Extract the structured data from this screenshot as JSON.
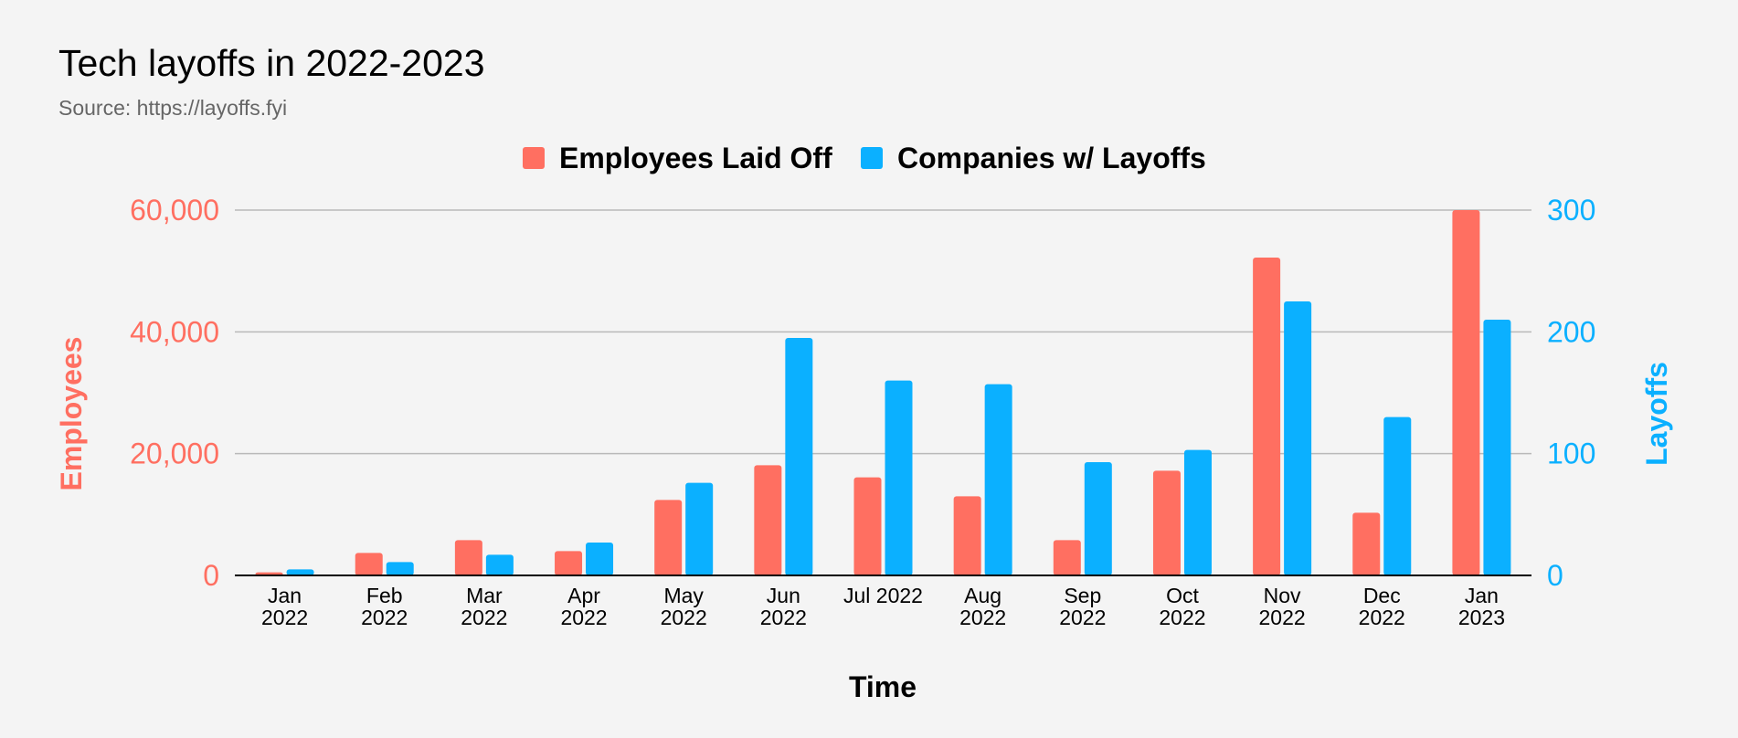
{
  "title": "Tech layoffs in 2022-2023",
  "subtitle": "Source: https://layoffs.fyi",
  "colors": {
    "employees": "#ff6f61",
    "companies": "#0bb0ff",
    "grid": "#b9b9b9",
    "baseline": "#000000",
    "background": "#f4f4f4"
  },
  "chart_data": {
    "type": "bar",
    "categories": [
      [
        "Jan",
        "2022"
      ],
      [
        "Feb",
        "2022"
      ],
      [
        "Mar",
        "2022"
      ],
      [
        "Apr",
        "2022"
      ],
      [
        "May",
        "2022"
      ],
      [
        "Jun",
        "2022"
      ],
      [
        "Jul 2022"
      ],
      [
        "Aug",
        "2022"
      ],
      [
        "Sep",
        "2022"
      ],
      [
        "Oct",
        "2022"
      ],
      [
        "Nov",
        "2022"
      ],
      [
        "Dec",
        "2022"
      ],
      [
        "Jan",
        "2023"
      ]
    ],
    "series": [
      {
        "name": "Employees Laid Off",
        "axis": "left",
        "values": [
          510,
          3700,
          5800,
          4000,
          12400,
          18100,
          16100,
          13000,
          5800,
          17200,
          52200,
          10300,
          60000
        ]
      },
      {
        "name": "Companies w/ Layoffs",
        "axis": "right",
        "values": [
          5,
          11,
          17,
          27,
          76,
          195,
          160,
          157,
          93,
          103,
          225,
          130,
          210
        ]
      }
    ],
    "xlabel": "Time",
    "ylabel": "Employees",
    "y2label": "Layoffs",
    "ylim": [
      0,
      60000
    ],
    "y2lim": [
      0,
      300
    ],
    "yticks": [
      "0",
      "20,000",
      "40,000",
      "60,000"
    ],
    "y2ticks": [
      "0",
      "100",
      "200",
      "300"
    ],
    "legend": "top",
    "grid": true
  }
}
